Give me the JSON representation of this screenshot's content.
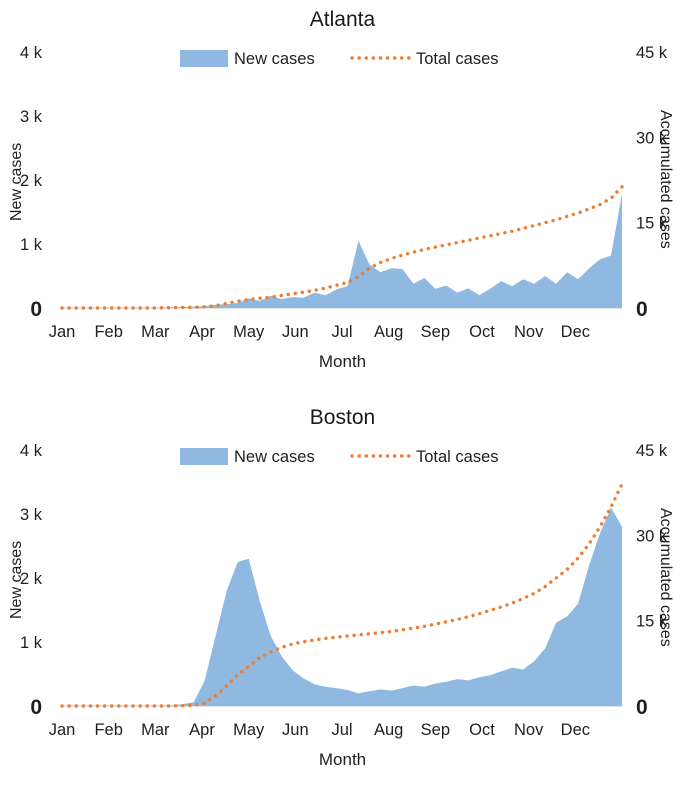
{
  "figure_background": "#ffffff",
  "chart_data": [
    {
      "type": "area+line",
      "title": "Atlanta",
      "x_axis": {
        "label": "Month",
        "ticks": [
          "Jan",
          "Feb",
          "Mar",
          "Apr",
          "May",
          "Jun",
          "Jul",
          "Aug",
          "Sep",
          "Oct",
          "Nov",
          "Dec"
        ]
      },
      "left_axis": {
        "label": "New cases",
        "ticks": [
          "4 k",
          "3 k",
          "2 k",
          "1 k",
          "0"
        ],
        "range": [
          0,
          4000
        ]
      },
      "right_axis": {
        "label": "Accumulated cases",
        "ticks": [
          "45 k",
          "30 k",
          "15 k",
          "0"
        ],
        "range": [
          0,
          45000
        ]
      },
      "x_unit": "week",
      "series": [
        {
          "name": "New cases",
          "style": "area",
          "axis": "left",
          "color": "#8FB9E0",
          "values": [
            0,
            0,
            0,
            0,
            0,
            0,
            0,
            0,
            0,
            5,
            10,
            15,
            20,
            30,
            50,
            60,
            80,
            150,
            110,
            190,
            140,
            170,
            160,
            240,
            200,
            290,
            340,
            1050,
            680,
            560,
            620,
            610,
            380,
            470,
            300,
            350,
            240,
            310,
            200,
            300,
            420,
            340,
            450,
            380,
            500,
            380,
            560,
            450,
            620,
            760,
            820,
            1780
          ]
        },
        {
          "name": "Total cases",
          "style": "dotted",
          "axis": "right",
          "color": "#ED7D31",
          "values": [
            0,
            0,
            0,
            0,
            0,
            0,
            0,
            0,
            0,
            20,
            50,
            80,
            120,
            200,
            400,
            800,
            1200,
            1500,
            1700,
            1900,
            2200,
            2500,
            2800,
            3100,
            3500,
            4000,
            4500,
            5500,
            7000,
            8000,
            8700,
            9300,
            9800,
            10300,
            10700,
            11100,
            11500,
            11900,
            12300,
            12700,
            13100,
            13500,
            14000,
            14500,
            15000,
            15500,
            16100,
            16700,
            17400,
            18200,
            19300,
            21300
          ]
        }
      ]
    },
    {
      "type": "area+line",
      "title": "Boston",
      "x_axis": {
        "label": "Month",
        "ticks": [
          "Jan",
          "Feb",
          "Mar",
          "Apr",
          "May",
          "Jun",
          "Jul",
          "Aug",
          "Sep",
          "Oct",
          "Nov",
          "Dec"
        ]
      },
      "left_axis": {
        "label": "New cases",
        "ticks": [
          "4 k",
          "3 k",
          "2 k",
          "1 k",
          "0"
        ],
        "range": [
          0,
          4000
        ]
      },
      "right_axis": {
        "label": "Accumulated cases",
        "ticks": [
          "45 k",
          "30 k",
          "15 k",
          "0"
        ],
        "range": [
          0,
          45000
        ]
      },
      "x_unit": "week",
      "series": [
        {
          "name": "New cases",
          "style": "area",
          "axis": "left",
          "color": "#8FB9E0",
          "values": [
            0,
            0,
            0,
            0,
            0,
            0,
            0,
            0,
            0,
            0,
            10,
            30,
            60,
            400,
            1100,
            1800,
            2250,
            2300,
            1650,
            1100,
            780,
            560,
            430,
            340,
            300,
            280,
            250,
            200,
            230,
            260,
            240,
            280,
            320,
            300,
            350,
            380,
            420,
            400,
            450,
            480,
            540,
            600,
            570,
            700,
            900,
            1300,
            1400,
            1600,
            2200,
            2700,
            3100,
            2800
          ]
        },
        {
          "name": "Total cases",
          "style": "dotted",
          "axis": "right",
          "color": "#ED7D31",
          "values": [
            0,
            0,
            0,
            0,
            0,
            0,
            0,
            0,
            0,
            0,
            20,
            60,
            120,
            500,
            1800,
            3500,
            5500,
            7000,
            8500,
            9500,
            10300,
            10900,
            11300,
            11600,
            11900,
            12100,
            12300,
            12500,
            12700,
            12900,
            13100,
            13400,
            13700,
            14000,
            14400,
            14800,
            15200,
            15700,
            16200,
            16800,
            17400,
            18100,
            18900,
            19800,
            21000,
            22500,
            24000,
            26000,
            28500,
            31500,
            35000,
            39000
          ]
        }
      ]
    }
  ]
}
